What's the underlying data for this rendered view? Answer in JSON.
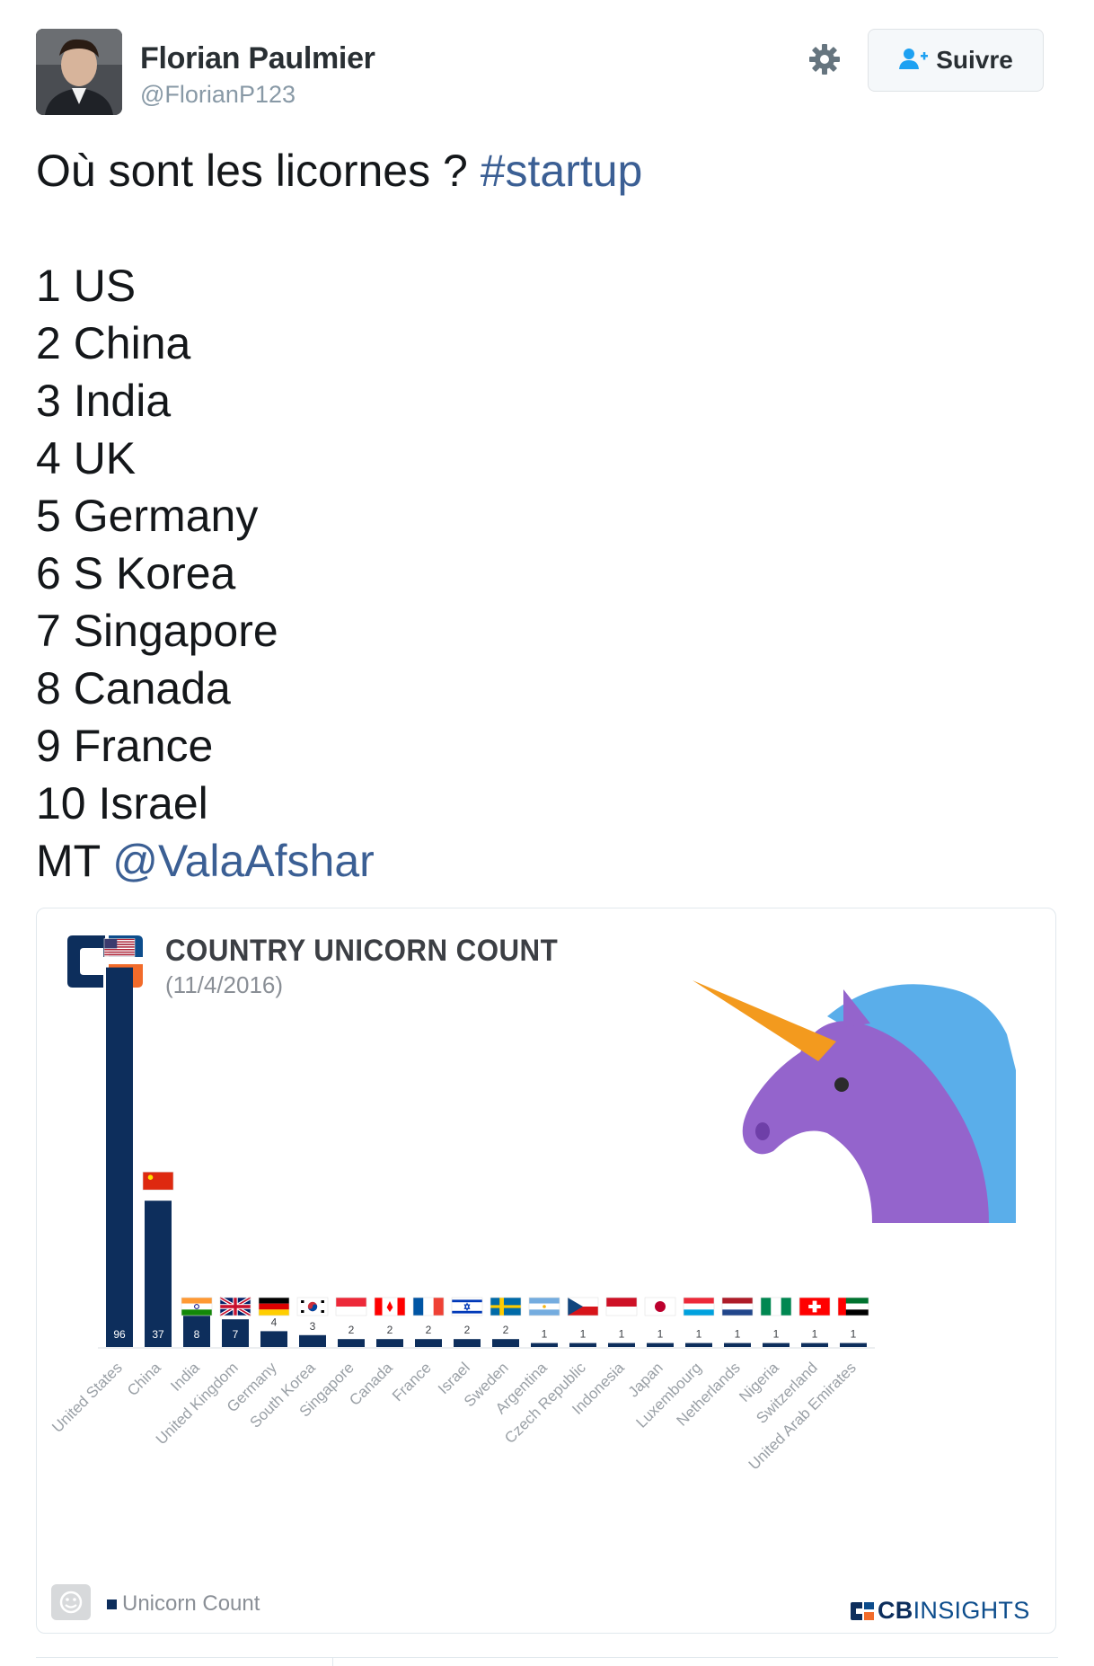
{
  "user": {
    "display_name": "Florian Paulmier",
    "handle": "@FlorianP123"
  },
  "actions": {
    "follow_label": "Suivre",
    "settings_icon": "gear-icon",
    "follow_icon": "add-person-icon"
  },
  "tweet": {
    "intro": "Où sont les licornes ? ",
    "hashtag": "#startup",
    "lines": [
      "1 US",
      "2 China",
      "3 India",
      "4 UK",
      "5 Germany",
      "6 S Korea",
      "7 Singapore",
      "8 Canada",
      "9 France",
      "10 Israel"
    ],
    "mt_prefix": "MT ",
    "mention": "@ValaAfshar"
  },
  "card": {
    "title": "COUNTRY UNICORN COUNT",
    "date": "(11/4/2016)",
    "legend_label": "Unicorn Count",
    "brand_bold": "CB",
    "brand_thin": "INSIGHTS"
  },
  "colors": {
    "bar": "#0d2e5c",
    "link": "#3b5f94",
    "unicorn_body": "#9464cc",
    "unicorn_mane": "#5aaeea",
    "unicorn_horn": "#f39a1e",
    "cb_orange": "#f26b2a"
  },
  "chart_data": {
    "type": "bar",
    "title": "COUNTRY UNICORN COUNT",
    "subtitle": "(11/4/2016)",
    "categories": [
      "United States",
      "China",
      "India",
      "United Kingdom",
      "Germany",
      "South Korea",
      "Singapore",
      "Canada",
      "France",
      "Israel",
      "Sweden",
      "Argentina",
      "Czech Republic",
      "Indonesia",
      "Japan",
      "Luxembourg",
      "Netherlands",
      "Nigeria",
      "Switzerland",
      "United Arab Emirates"
    ],
    "series": [
      {
        "name": "Unicorn Count",
        "values": [
          96,
          37,
          8,
          7,
          4,
          3,
          2,
          2,
          2,
          2,
          2,
          1,
          1,
          1,
          1,
          1,
          1,
          1,
          1,
          1
        ]
      }
    ],
    "ylim": [
      0,
      100
    ],
    "grid": false,
    "legend": "bottom-left"
  }
}
